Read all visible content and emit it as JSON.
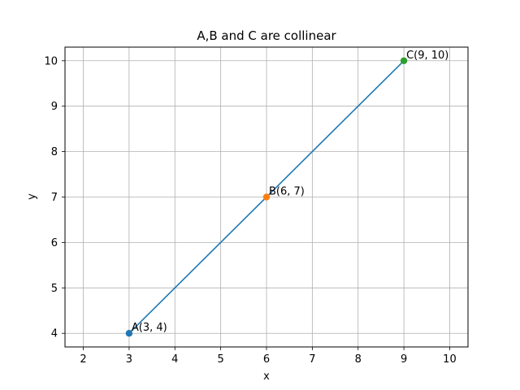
{
  "chart_data": {
    "type": "line",
    "title": "A,B and C are collinear",
    "xlabel": "x",
    "ylabel": "y",
    "xlim": [
      1.6,
      10.4
    ],
    "ylim": [
      3.7,
      10.3
    ],
    "xticks": [
      2,
      3,
      4,
      5,
      6,
      7,
      8,
      9,
      10
    ],
    "yticks": [
      4,
      5,
      6,
      7,
      8,
      9,
      10
    ],
    "grid": true,
    "series": [
      {
        "x": [
          3,
          9
        ],
        "y": [
          4,
          10
        ],
        "color": "#1f77b4"
      }
    ],
    "points": [
      {
        "x": 3,
        "y": 4,
        "label": "A(3, 4)",
        "color": "#1f77b4"
      },
      {
        "x": 6,
        "y": 7,
        "label": "B(6, 7)",
        "color": "#ff7f0e"
      },
      {
        "x": 9,
        "y": 10,
        "label": "C(9, 10)",
        "color": "#2ca02c"
      }
    ]
  }
}
